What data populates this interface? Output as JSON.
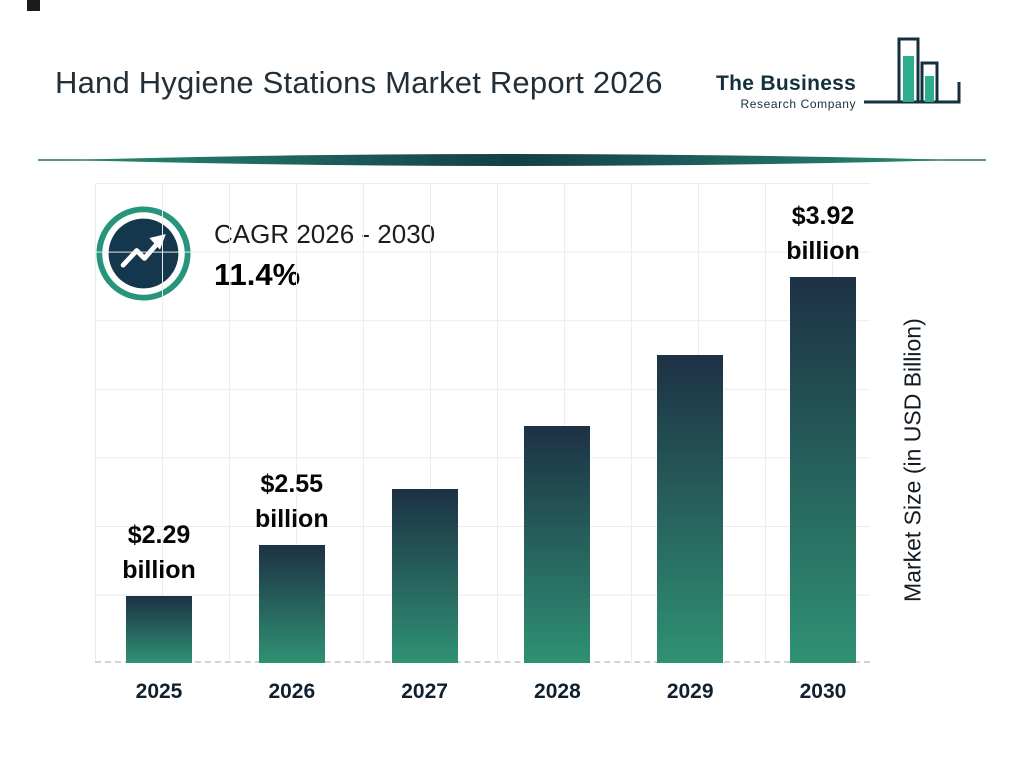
{
  "page": {
    "title": "Hand Hygiene Stations Market Report 2026"
  },
  "logo": {
    "line1": "The Business",
    "line2": "Research Company"
  },
  "cagr": {
    "label": "CAGR 2026 - 2030",
    "value": "11.4%"
  },
  "chart_data": {
    "type": "bar",
    "title": "Hand Hygiene Stations Market Report 2026",
    "categories": [
      "2025",
      "2026",
      "2027",
      "2028",
      "2029",
      "2030"
    ],
    "values": [
      2.29,
      2.55,
      2.84,
      3.16,
      3.52,
      3.92
    ],
    "bar_labels": [
      [
        "$2.29",
        "billion"
      ],
      [
        "$2.55",
        "billion"
      ],
      null,
      null,
      null,
      [
        "$3.92",
        "billion"
      ]
    ],
    "xlabel": "",
    "ylabel": "Market Size (in USD Billion)",
    "ylim": [
      1.95,
      4.4
    ],
    "grid": true,
    "legend_position": "none",
    "bar_color_top": "#1d3145",
    "bar_color_bottom": "#2f9173"
  },
  "colors": {
    "accent_teal": "#27947c",
    "navy": "#14303e",
    "grid_line": "#ececec",
    "divider": "#1b584e"
  }
}
